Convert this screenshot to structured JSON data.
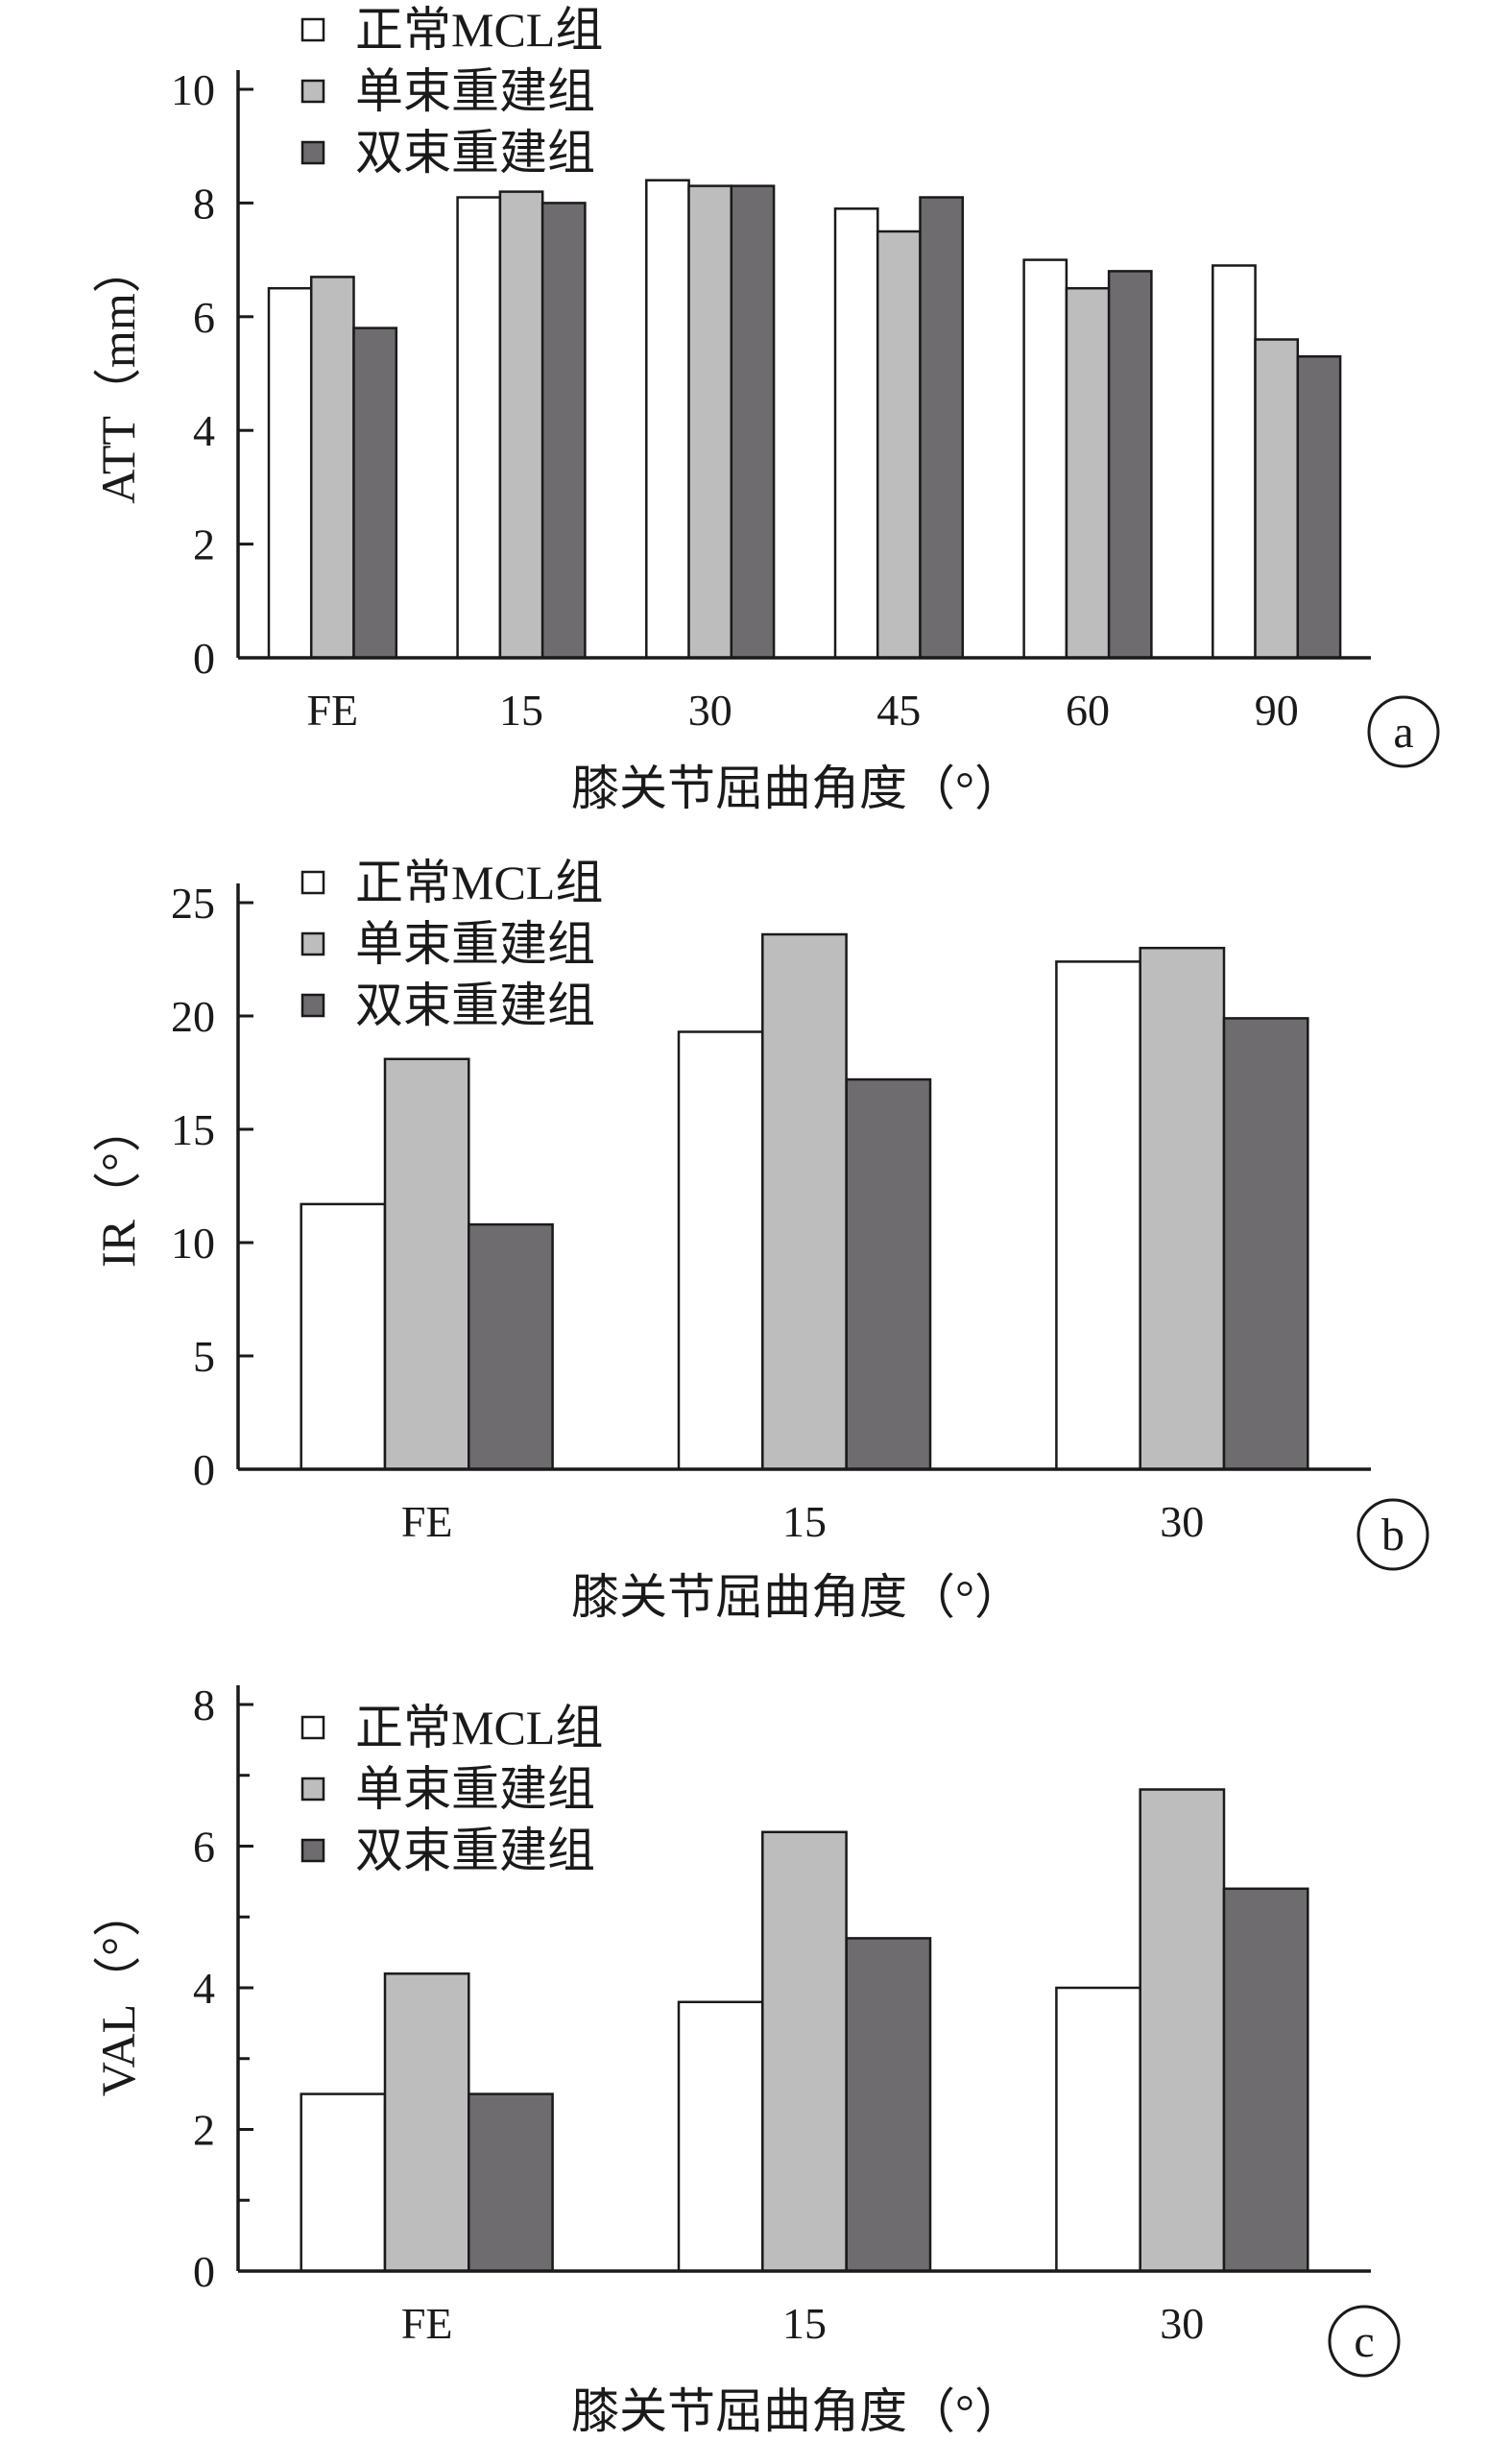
{
  "legend": [
    {
      "label": "正常MCL组",
      "color": "#ffffff"
    },
    {
      "label": "单束重建组",
      "color": "#bdbdbd"
    },
    {
      "label": "双束重建组",
      "color": "#6e6c6e"
    }
  ],
  "chart_data": [
    {
      "type": "bar",
      "panel": "a",
      "categories": [
        "FE",
        "15",
        "30",
        "45",
        "60",
        "90"
      ],
      "series": [
        {
          "name": "正常MCL组",
          "values": [
            6.5,
            8.1,
            8.4,
            7.9,
            7.0,
            6.9
          ]
        },
        {
          "name": "单束重建组",
          "values": [
            6.7,
            8.2,
            8.3,
            7.5,
            6.5,
            5.6
          ]
        },
        {
          "name": "双束重建组",
          "values": [
            5.8,
            8.0,
            8.3,
            8.1,
            6.8,
            5.3
          ]
        }
      ],
      "ylabel": "ATT（mm）",
      "xlabel": "膝关节屈曲角度（°）",
      "ylim": [
        0,
        10
      ],
      "yticks": [
        0,
        2,
        4,
        6,
        8,
        10
      ],
      "minor_ticks": false,
      "legend_position": "top-left"
    },
    {
      "type": "bar",
      "panel": "b",
      "categories": [
        "FE",
        "15",
        "30"
      ],
      "series": [
        {
          "name": "正常MCL组",
          "values": [
            11.7,
            19.3,
            22.4
          ]
        },
        {
          "name": "单束重建组",
          "values": [
            18.1,
            23.6,
            23.0
          ]
        },
        {
          "name": "双束重建组",
          "values": [
            10.8,
            17.2,
            19.9
          ]
        }
      ],
      "ylabel": "IR（°）",
      "xlabel": "膝关节屈曲角度（°）",
      "ylim": [
        0,
        25
      ],
      "yticks": [
        0,
        5,
        10,
        15,
        20,
        25
      ],
      "minor_ticks": false,
      "legend_position": "top-left"
    },
    {
      "type": "bar",
      "panel": "c",
      "categories": [
        "FE",
        "15",
        "30"
      ],
      "series": [
        {
          "name": "正常MCL组",
          "values": [
            2.5,
            3.8,
            4.0
          ]
        },
        {
          "name": "单束重建组",
          "values": [
            4.2,
            6.2,
            6.8
          ]
        },
        {
          "name": "双束重建组",
          "values": [
            2.5,
            4.7,
            5.4
          ]
        }
      ],
      "ylabel": "VAL（°）",
      "xlabel": "膝关节屈曲角度（°）",
      "ylim": [
        0,
        8
      ],
      "yticks": [
        0,
        2,
        4,
        6,
        8
      ],
      "minor_ticks": true,
      "legend_position": "top-left"
    }
  ]
}
